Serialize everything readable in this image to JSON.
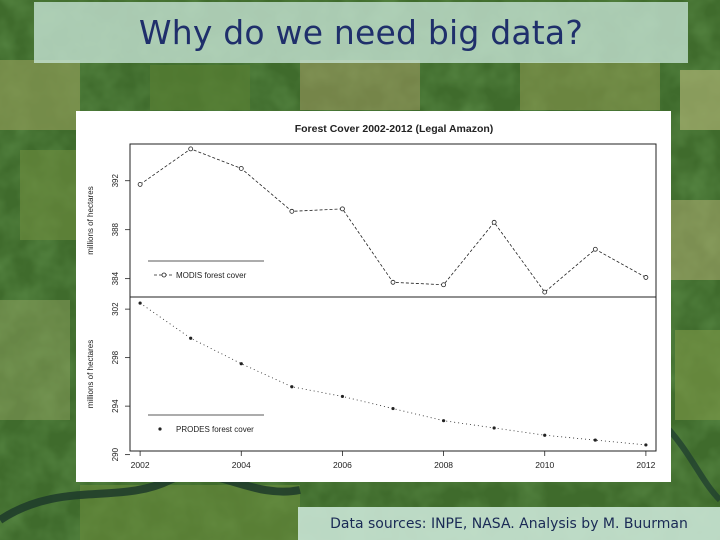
{
  "slide": {
    "title": "Why do we need big data?",
    "source_note": "Data sources: INPE, NASA. Analysis by M. Buurman"
  },
  "colors": {
    "title_text": "#1f2f6b",
    "title_box": "#c8e6d7",
    "chart_ink": "#222222"
  },
  "chart_data": [
    {
      "type": "line",
      "title": "Forest Cover 2002-2012 (Legal Amazon)",
      "ylabel": "millions of hectares",
      "x": [
        2002,
        2003,
        2004,
        2005,
        2006,
        2007,
        2008,
        2009,
        2010,
        2011,
        2012
      ],
      "series": [
        {
          "name": "MODIS forest cover",
          "values": [
            391.7,
            394.6,
            393.0,
            389.5,
            389.7,
            383.7,
            383.5,
            388.6,
            382.9,
            386.4,
            384.1
          ]
        }
      ],
      "yticks": [
        384,
        388,
        392
      ],
      "ylim": [
        382.5,
        395.0
      ],
      "xlim": [
        2001.8,
        2012.2
      ],
      "legend": "bottom-left",
      "grid": false
    },
    {
      "type": "line",
      "title": "",
      "ylabel": "millions of hectares",
      "x": [
        2002,
        2003,
        2004,
        2005,
        2006,
        2007,
        2008,
        2009,
        2010,
        2011,
        2012
      ],
      "series": [
        {
          "name": "PRODES forest cover",
          "values": [
            302.5,
            299.6,
            297.5,
            295.6,
            294.8,
            293.8,
            292.8,
            292.2,
            291.6,
            291.2,
            290.8
          ]
        }
      ],
      "xticks": [
        2002,
        2004,
        2006,
        2008,
        2010,
        2012
      ],
      "yticks": [
        290,
        294,
        298,
        302
      ],
      "ylim": [
        290.3,
        303.0
      ],
      "xlim": [
        2001.8,
        2012.2
      ],
      "legend": "bottom-left",
      "grid": false
    }
  ]
}
